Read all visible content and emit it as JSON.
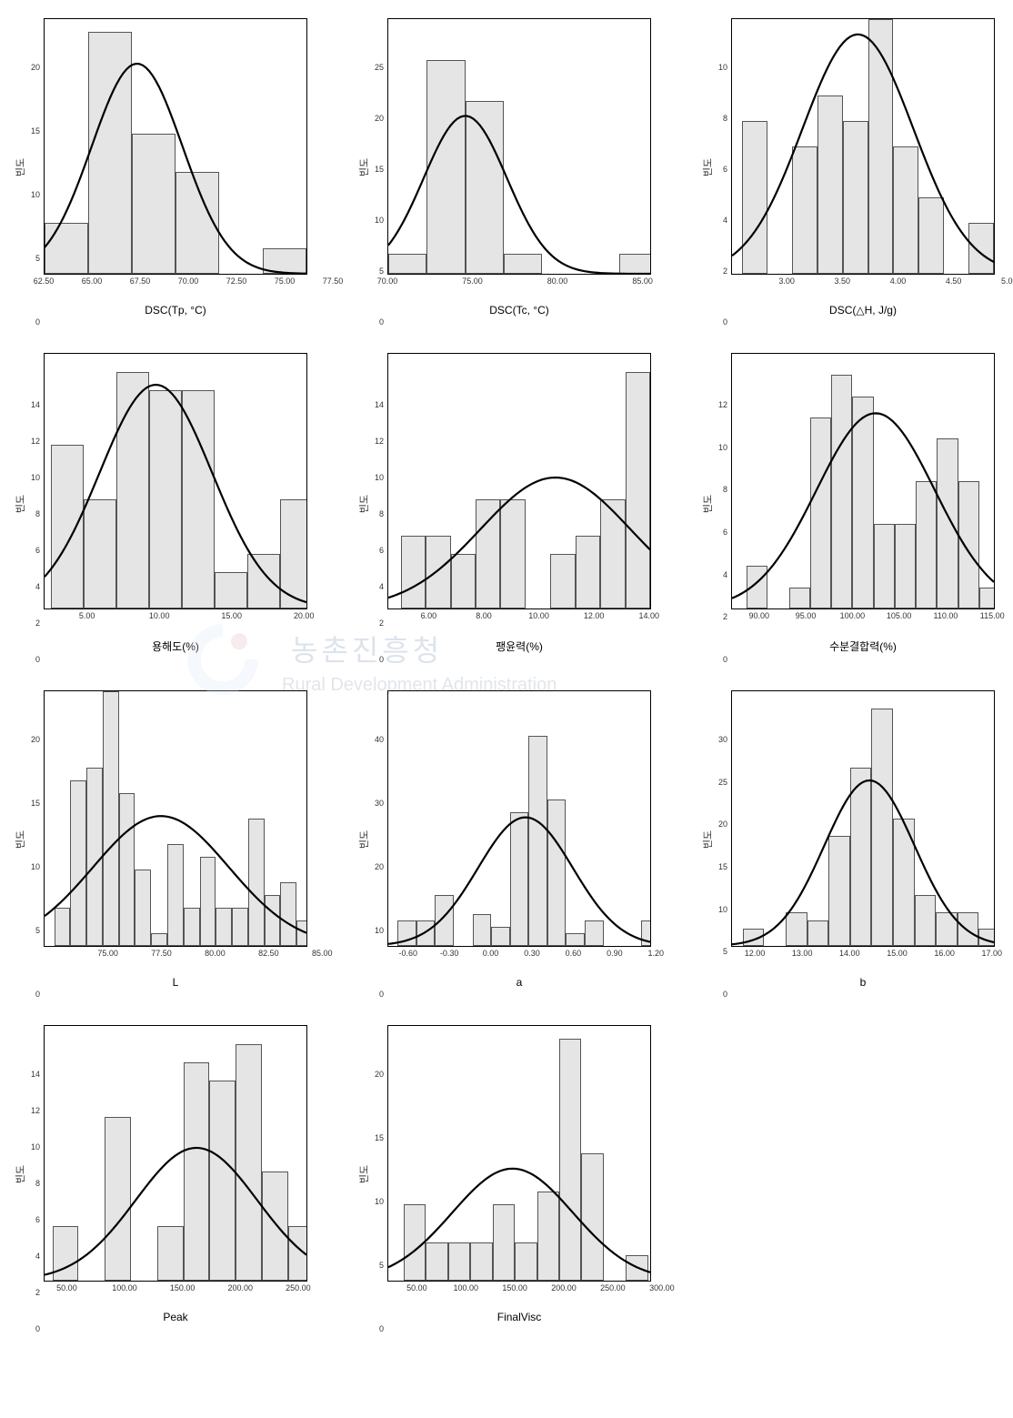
{
  "layout": {
    "cols": 3,
    "rows": 4,
    "background_color": "#ffffff",
    "bar_fill": "#e5e5e5",
    "bar_stroke": "#555555",
    "curve_stroke": "#000000",
    "curve_width": 2.2,
    "box_border": "#000000"
  },
  "watermark": {
    "line1": "농촌진흥청",
    "line2": "Rural Development Administration",
    "logo_colors": {
      "arc": "#d8e4f1",
      "dot": "#cc5555"
    }
  },
  "ylabel_common": "빈도",
  "charts": [
    {
      "id": "dsc_tp",
      "xlabel": "DSC(Tp, °C)",
      "xlim": [
        62.5,
        77.5
      ],
      "ylim": [
        0,
        20
      ],
      "yticks": [
        0,
        5,
        10,
        15,
        20
      ],
      "xticks": [
        62.5,
        65.0,
        67.5,
        70.0,
        72.5,
        75.0,
        77.5
      ],
      "xtick_fmt": 2,
      "bin_width": 2.5,
      "bars": [
        {
          "x": 62.5,
          "h": 4
        },
        {
          "x": 65.0,
          "h": 19
        },
        {
          "x": 67.5,
          "h": 11
        },
        {
          "x": 70.0,
          "h": 8
        },
        {
          "x": 72.5,
          "h": 0
        },
        {
          "x": 75.0,
          "h": 2
        }
      ],
      "curve": {
        "mu": 67.8,
        "sigma": 2.6,
        "peak": 16.5
      }
    },
    {
      "id": "dsc_tc",
      "xlabel": "DSC(Tc, °C)",
      "xlim": [
        70,
        87
      ],
      "ylim": [
        0,
        25
      ],
      "yticks": [
        0,
        5,
        10,
        15,
        20,
        25
      ],
      "xticks": [
        70.0,
        75.0,
        80.0,
        85.0
      ],
      "xtick_fmt": 2,
      "bin_width": 2.5,
      "bars": [
        {
          "x": 70.0,
          "h": 2
        },
        {
          "x": 72.5,
          "h": 21
        },
        {
          "x": 75.0,
          "h": 17
        },
        {
          "x": 77.5,
          "h": 2
        },
        {
          "x": 80.0,
          "h": 0
        },
        {
          "x": 82.5,
          "h": 0
        },
        {
          "x": 85.0,
          "h": 2
        }
      ],
      "curve": {
        "mu": 75.0,
        "sigma": 2.7,
        "peak": 15.5
      }
    },
    {
      "id": "dsc_dh",
      "xlabel": "DSC(△H, J/g)",
      "xlim": [
        2.5,
        5.1
      ],
      "ylim": [
        0,
        10
      ],
      "yticks": [
        0,
        2,
        4,
        6,
        8,
        10
      ],
      "xticks": [
        3.0,
        3.5,
        4.0,
        4.5,
        5.0
      ],
      "xtick_fmt": 2,
      "bin_width": 0.25,
      "bars": [
        {
          "x": 2.6,
          "h": 6
        },
        {
          "x": 2.85,
          "h": 0
        },
        {
          "x": 3.1,
          "h": 5
        },
        {
          "x": 3.35,
          "h": 7
        },
        {
          "x": 3.6,
          "h": 6
        },
        {
          "x": 3.85,
          "h": 10
        },
        {
          "x": 4.1,
          "h": 5
        },
        {
          "x": 4.35,
          "h": 3
        },
        {
          "x": 4.6,
          "h": 0
        },
        {
          "x": 4.85,
          "h": 2
        }
      ],
      "curve": {
        "mu": 3.75,
        "sigma": 0.55,
        "peak": 9.4
      }
    },
    {
      "id": "solubility",
      "xlabel": "용해도(%)",
      "xlim": [
        2,
        22
      ],
      "ylim": [
        0,
        14
      ],
      "yticks": [
        0,
        2,
        4,
        6,
        8,
        10,
        12,
        14
      ],
      "xticks": [
        5.0,
        10.0,
        15.0,
        20.0
      ],
      "xtick_fmt": 2,
      "bin_width": 2.5,
      "bars": [
        {
          "x": 2.5,
          "h": 9
        },
        {
          "x": 5.0,
          "h": 6
        },
        {
          "x": 7.5,
          "h": 13
        },
        {
          "x": 10.0,
          "h": 12
        },
        {
          "x": 12.5,
          "h": 12
        },
        {
          "x": 15.0,
          "h": 2
        },
        {
          "x": 17.5,
          "h": 3
        },
        {
          "x": 20.0,
          "h": 6
        }
      ],
      "curve": {
        "mu": 10.5,
        "sigma": 4.3,
        "peak": 12.3
      }
    },
    {
      "id": "swelling",
      "xlabel": "팽윤력(%)",
      "xlim": [
        4.5,
        15
      ],
      "ylim": [
        0,
        14
      ],
      "yticks": [
        0,
        2,
        4,
        6,
        8,
        10,
        12,
        14
      ],
      "xticks": [
        6.0,
        8.0,
        10.0,
        12.0,
        14.0
      ],
      "xtick_fmt": 2,
      "bin_width": 1.0,
      "bars": [
        {
          "x": 5.0,
          "h": 4
        },
        {
          "x": 6.0,
          "h": 4
        },
        {
          "x": 7.0,
          "h": 3
        },
        {
          "x": 8.0,
          "h": 6
        },
        {
          "x": 9.0,
          "h": 6
        },
        {
          "x": 10.0,
          "h": 0
        },
        {
          "x": 11.0,
          "h": 3
        },
        {
          "x": 12.0,
          "h": 4
        },
        {
          "x": 13.0,
          "h": 6
        },
        {
          "x": 14.0,
          "h": 13
        }
      ],
      "curve": {
        "mu": 11.2,
        "sigma": 3.0,
        "peak": 7.2
      }
    },
    {
      "id": "water_binding",
      "xlabel": "수분결합력(%)",
      "xlim": [
        87,
        118
      ],
      "ylim": [
        0,
        12
      ],
      "yticks": [
        0,
        2,
        4,
        6,
        8,
        10,
        12
      ],
      "xticks": [
        90.0,
        95.0,
        100.0,
        105.0,
        110.0,
        115.0
      ],
      "xtick_fmt": 2,
      "bin_width": 2.5,
      "bars": [
        {
          "x": 88.75,
          "h": 2
        },
        {
          "x": 91.25,
          "h": 0
        },
        {
          "x": 93.75,
          "h": 1
        },
        {
          "x": 96.25,
          "h": 9
        },
        {
          "x": 98.75,
          "h": 11
        },
        {
          "x": 101.25,
          "h": 10
        },
        {
          "x": 103.75,
          "h": 4
        },
        {
          "x": 106.25,
          "h": 4
        },
        {
          "x": 108.75,
          "h": 6
        },
        {
          "x": 111.25,
          "h": 8
        },
        {
          "x": 113.75,
          "h": 6
        },
        {
          "x": 116.25,
          "h": 1
        }
      ],
      "curve": {
        "mu": 104,
        "sigma": 7.0,
        "peak": 9.2
      }
    },
    {
      "id": "color_L",
      "xlabel": "L",
      "xlim": [
        72,
        85.5
      ],
      "ylim": [
        0,
        20
      ],
      "yticks": [
        0,
        5,
        10,
        15,
        20
      ],
      "xticks": [
        75.0,
        77.5,
        80.0,
        82.5,
        85.0
      ],
      "xtick_fmt": 2,
      "bin_width": 0.833,
      "bars": [
        {
          "x": 72.5,
          "h": 3
        },
        {
          "x": 73.33,
          "h": 13
        },
        {
          "x": 74.16,
          "h": 14
        },
        {
          "x": 75.0,
          "h": 20
        },
        {
          "x": 75.83,
          "h": 12
        },
        {
          "x": 76.66,
          "h": 6
        },
        {
          "x": 77.5,
          "h": 1
        },
        {
          "x": 78.33,
          "h": 8
        },
        {
          "x": 79.16,
          "h": 3
        },
        {
          "x": 80.0,
          "h": 7
        },
        {
          "x": 80.83,
          "h": 3
        },
        {
          "x": 81.66,
          "h": 3
        },
        {
          "x": 82.5,
          "h": 10
        },
        {
          "x": 83.33,
          "h": 4
        },
        {
          "x": 84.16,
          "h": 5
        },
        {
          "x": 85.0,
          "h": 2
        }
      ],
      "curve": {
        "mu": 78.0,
        "sigma": 3.5,
        "peak": 10.2
      }
    },
    {
      "id": "color_a",
      "xlabel": "a",
      "xlim": [
        -0.75,
        1.35
      ],
      "ylim": [
        0,
        40
      ],
      "yticks": [
        0,
        10,
        20,
        30,
        40
      ],
      "xticks": [
        -0.6,
        -0.3,
        0.0,
        0.3,
        0.6,
        0.9,
        1.2
      ],
      "xtick_fmt": 2,
      "bin_width": 0.15,
      "bars": [
        {
          "x": -0.675,
          "h": 4
        },
        {
          "x": -0.525,
          "h": 4
        },
        {
          "x": -0.375,
          "h": 8
        },
        {
          "x": -0.225,
          "h": 0
        },
        {
          "x": -0.075,
          "h": 5
        },
        {
          "x": 0.075,
          "h": 3
        },
        {
          "x": 0.225,
          "h": 21
        },
        {
          "x": 0.375,
          "h": 33
        },
        {
          "x": 0.525,
          "h": 23
        },
        {
          "x": 0.675,
          "h": 2
        },
        {
          "x": 0.825,
          "h": 4
        },
        {
          "x": 0.975,
          "h": 0
        },
        {
          "x": 1.125,
          "h": 0
        },
        {
          "x": 1.275,
          "h": 4
        }
      ],
      "curve": {
        "mu": 0.35,
        "sigma": 0.38,
        "peak": 20.2
      }
    },
    {
      "id": "color_b",
      "xlabel": "b",
      "xlim": [
        11.5,
        17.6
      ],
      "ylim": [
        0,
        30
      ],
      "yticks": [
        0,
        5,
        10,
        15,
        20,
        25,
        30
      ],
      "xticks": [
        12.0,
        13.0,
        14.0,
        15.0,
        16.0,
        17.0
      ],
      "xtick_fmt": 2,
      "bin_width": 0.5,
      "bars": [
        {
          "x": 11.75,
          "h": 2
        },
        {
          "x": 12.25,
          "h": 0
        },
        {
          "x": 12.75,
          "h": 4
        },
        {
          "x": 13.25,
          "h": 3
        },
        {
          "x": 13.75,
          "h": 13
        },
        {
          "x": 14.25,
          "h": 21
        },
        {
          "x": 14.75,
          "h": 28
        },
        {
          "x": 15.25,
          "h": 15
        },
        {
          "x": 15.75,
          "h": 6
        },
        {
          "x": 16.25,
          "h": 4
        },
        {
          "x": 16.75,
          "h": 4
        },
        {
          "x": 17.25,
          "h": 2
        }
      ],
      "curve": {
        "mu": 14.7,
        "sigma": 1.05,
        "peak": 19.5
      }
    },
    {
      "id": "peak",
      "xlabel": "Peak",
      "xlim": [
        30,
        280
      ],
      "ylim": [
        0,
        14
      ],
      "yticks": [
        0,
        2,
        4,
        6,
        8,
        10,
        12,
        14
      ],
      "xticks": [
        50.0,
        100.0,
        150.0,
        200.0,
        250.0
      ],
      "xtick_fmt": 2,
      "bin_width": 25,
      "bars": [
        {
          "x": 37.5,
          "h": 3
        },
        {
          "x": 62.5,
          "h": 0
        },
        {
          "x": 87.5,
          "h": 9
        },
        {
          "x": 112.5,
          "h": 0
        },
        {
          "x": 137.5,
          "h": 3
        },
        {
          "x": 162.5,
          "h": 12
        },
        {
          "x": 187.5,
          "h": 11
        },
        {
          "x": 212.5,
          "h": 13
        },
        {
          "x": 237.5,
          "h": 6
        },
        {
          "x": 262.5,
          "h": 3
        }
      ],
      "curve": {
        "mu": 175,
        "sigma": 58,
        "peak": 7.3
      }
    },
    {
      "id": "finalvisc",
      "xlabel": "FinalVisc",
      "xlim": [
        20,
        315
      ],
      "ylim": [
        0,
        20
      ],
      "yticks": [
        0,
        5,
        10,
        15,
        20
      ],
      "xticks": [
        50.0,
        100.0,
        150.0,
        200.0,
        250.0,
        300.0
      ],
      "xtick_fmt": 2,
      "bin_width": 25,
      "bars": [
        {
          "x": 37.5,
          "h": 6
        },
        {
          "x": 62.5,
          "h": 3
        },
        {
          "x": 87.5,
          "h": 3
        },
        {
          "x": 112.5,
          "h": 3
        },
        {
          "x": 137.5,
          "h": 6
        },
        {
          "x": 162.5,
          "h": 3
        },
        {
          "x": 187.5,
          "h": 7
        },
        {
          "x": 212.5,
          "h": 19
        },
        {
          "x": 237.5,
          "h": 10
        },
        {
          "x": 262.5,
          "h": 0
        },
        {
          "x": 287.5,
          "h": 2
        }
      ],
      "curve": {
        "mu": 160,
        "sigma": 68,
        "peak": 8.8
      }
    }
  ]
}
